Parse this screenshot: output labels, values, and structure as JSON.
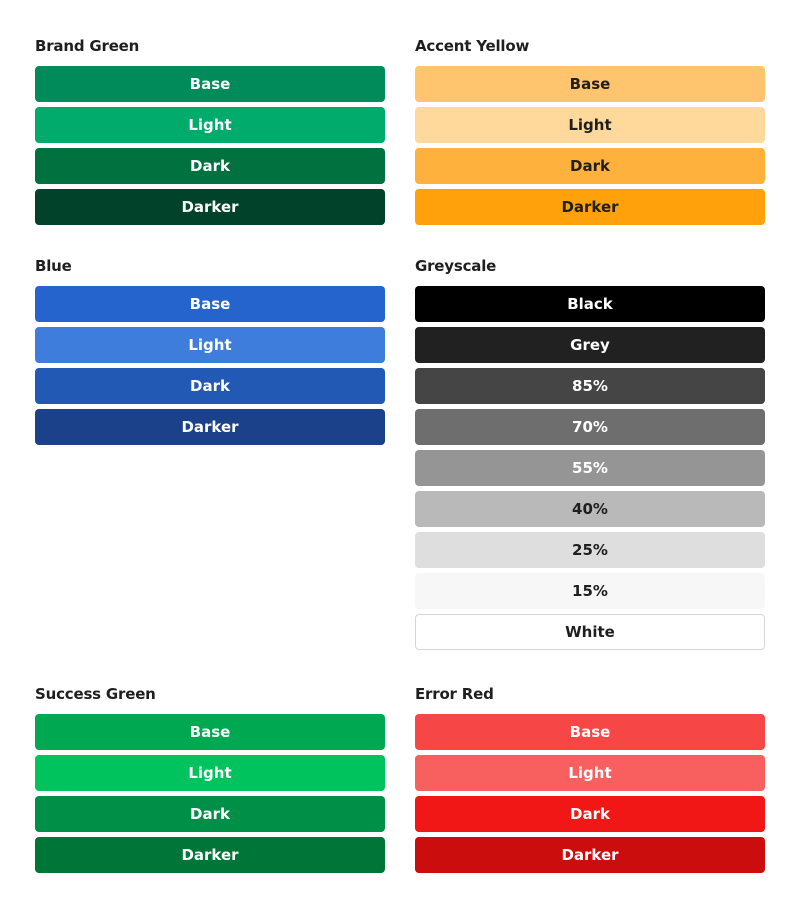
{
  "groups": {
    "brand": {
      "title": "Brand Green",
      "swatches": [
        {
          "label": "Base",
          "color": "#018a5a",
          "text": "#ffffff"
        },
        {
          "label": "Light",
          "color": "#00ab6b",
          "text": "#ffffff"
        },
        {
          "label": "Dark",
          "color": "#00713f",
          "text": "#ffffff"
        },
        {
          "label": "Darker",
          "color": "#00432a",
          "text": "#ffffff"
        }
      ]
    },
    "accent": {
      "title": "Accent Yellow",
      "swatches": [
        {
          "label": "Base",
          "color": "#ffc56e",
          "text": "#1f1f1f"
        },
        {
          "label": "Light",
          "color": "#ffd99b",
          "text": "#1f1f1f"
        },
        {
          "label": "Dark",
          "color": "#ffb13e",
          "text": "#1f1f1f"
        },
        {
          "label": "Darker",
          "color": "#ffa10a",
          "text": "#1f1f1f"
        }
      ]
    },
    "blue": {
      "title": "Blue",
      "swatches": [
        {
          "label": "Base",
          "color": "#2564cc",
          "text": "#ffffff"
        },
        {
          "label": "Light",
          "color": "#3e7ddc",
          "text": "#ffffff"
        },
        {
          "label": "Dark",
          "color": "#2259b5",
          "text": "#ffffff"
        },
        {
          "label": "Darker",
          "color": "#1b418a",
          "text": "#ffffff"
        }
      ]
    },
    "grey": {
      "title": "Greyscale",
      "swatches": [
        {
          "label": "Black",
          "color": "#000000",
          "text": "#ffffff"
        },
        {
          "label": "Grey",
          "color": "#212121",
          "text": "#ffffff"
        },
        {
          "label": "85%",
          "color": "#454545",
          "text": "#ffffff"
        },
        {
          "label": "70%",
          "color": "#6e6e6e",
          "text": "#ffffff"
        },
        {
          "label": "55%",
          "color": "#959595",
          "text": "#ffffff"
        },
        {
          "label": "40%",
          "color": "#b9b9b9",
          "text": "#1f1f1f"
        },
        {
          "label": "25%",
          "color": "#dedede",
          "text": "#1f1f1f"
        },
        {
          "label": "15%",
          "color": "#f7f7f7",
          "text": "#1f1f1f"
        },
        {
          "label": "White",
          "color": "#ffffff",
          "text": "#1f1f1f",
          "border": true
        }
      ]
    },
    "success": {
      "title": "Success Green",
      "swatches": [
        {
          "label": "Base",
          "color": "#00a852",
          "text": "#ffffff"
        },
        {
          "label": "Light",
          "color": "#00c35d",
          "text": "#ffffff"
        },
        {
          "label": "Dark",
          "color": "#008f46",
          "text": "#ffffff"
        },
        {
          "label": "Darker",
          "color": "#007538",
          "text": "#ffffff"
        }
      ]
    },
    "error": {
      "title": "Error Red",
      "swatches": [
        {
          "label": "Base",
          "color": "#f64646",
          "text": "#ffffff"
        },
        {
          "label": "Light",
          "color": "#f85f5f",
          "text": "#ffffff"
        },
        {
          "label": "Dark",
          "color": "#f21717",
          "text": "#ffffff"
        },
        {
          "label": "Darker",
          "color": "#cc0d0d",
          "text": "#ffffff"
        }
      ]
    }
  }
}
